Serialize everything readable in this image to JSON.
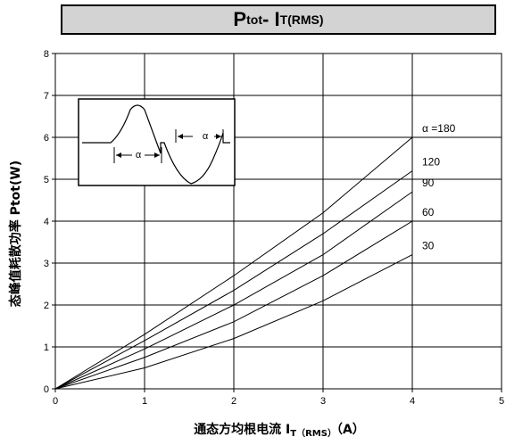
{
  "chart_data": {
    "type": "line",
    "title_main": "P",
    "title_main_sub": "tot",
    "title_sep": "- I",
    "title_i_sub": "T(RMS)",
    "ylabel": "态峰值耗散功率 Ptot(W)",
    "xlabel_text": "通态方均根电流 I",
    "xlabel_sub": "T（RMS）",
    "xlabel_tail": "（A）",
    "xlim": [
      0,
      5
    ],
    "ylim": [
      0,
      8
    ],
    "x_ticks": [
      "0",
      "1",
      "2",
      "3",
      "4",
      "5"
    ],
    "y_ticks": [
      "0",
      "1",
      "2",
      "3",
      "4",
      "5",
      "6",
      "7",
      "8"
    ],
    "grid": true,
    "series": [
      {
        "name": "α =180",
        "x": [
          0,
          1,
          2,
          3,
          4
        ],
        "y": [
          0,
          1.3,
          2.7,
          4.2,
          6.0
        ]
      },
      {
        "name": "120",
        "x": [
          0,
          1,
          2,
          3,
          4
        ],
        "y": [
          0,
          1.15,
          2.35,
          3.7,
          5.2
        ]
      },
      {
        "name": "90",
        "x": [
          0,
          1,
          2,
          3,
          4
        ],
        "y": [
          0,
          0.95,
          2.0,
          3.2,
          4.7
        ]
      },
      {
        "name": "60",
        "x": [
          0,
          1,
          2,
          3,
          4
        ],
        "y": [
          0,
          0.75,
          1.6,
          2.7,
          4.0
        ]
      },
      {
        "name": "30",
        "x": [
          0,
          1,
          2,
          3,
          4
        ],
        "y": [
          0,
          0.5,
          1.2,
          2.1,
          3.2
        ]
      }
    ],
    "inset_labels": [
      "α",
      "α"
    ]
  }
}
